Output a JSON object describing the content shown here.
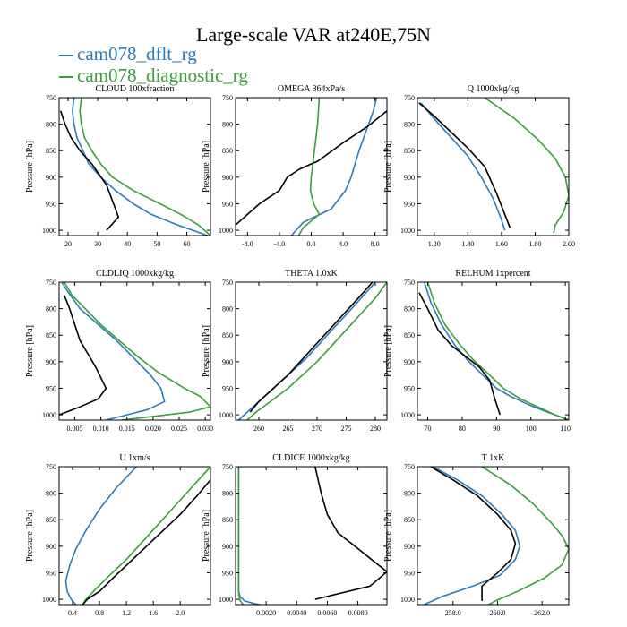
{
  "title": "Large-scale VAR at240E,75N",
  "legend": [
    {
      "name": "cam078_dflt_rg",
      "color": "#2b7bb9"
    },
    {
      "name": "cam078_diagnostic_rg",
      "color": "#3a9e3a"
    }
  ],
  "colors": {
    "reference": "#000000"
  },
  "chart_data": [
    {
      "type": "line",
      "title": "CLOUD  100xfraction",
      "ylabel": "Pressure [hPa]",
      "xlim": [
        17,
        68
      ],
      "ylim": [
        750,
        1010
      ],
      "y_reversed": true,
      "xticks": [
        20,
        30,
        40,
        50,
        60
      ],
      "xtick_labels": [
        "20",
        "30",
        "40",
        "50",
        "60"
      ],
      "yticks": [
        750,
        800,
        850,
        900,
        950,
        1000
      ],
      "ytick_labels": [
        "750",
        "800",
        "850",
        "900",
        "950",
        "1000"
      ],
      "series": [
        {
          "name": "cam078_dflt_rg",
          "x": [
            22,
            21.5,
            22,
            23,
            25,
            27,
            31,
            36,
            42,
            48,
            57,
            67
          ],
          "y": [
            750,
            775,
            800,
            825,
            850,
            875,
            900,
            925,
            950,
            970,
            990,
            1010
          ]
        },
        {
          "name": "cam078_diagnostic_rg",
          "x": [
            24.5,
            24,
            24.5,
            25.5,
            28,
            31,
            35,
            42,
            51,
            58,
            64,
            68
          ],
          "y": [
            750,
            775,
            800,
            825,
            850,
            875,
            900,
            925,
            950,
            970,
            990,
            1010
          ]
        },
        {
          "name": "",
          "x": [
            17.5,
            19,
            21,
            24,
            28,
            33,
            37,
            33
          ],
          "y": [
            775,
            800,
            825,
            850,
            875,
            915,
            975,
            1000
          ]
        }
      ]
    },
    {
      "type": "line",
      "title": "OMEGA  864xPa/s",
      "ylabel": "Pressure [hPa]",
      "xlim": [
        -9.5,
        9.5
      ],
      "ylim": [
        750,
        1010
      ],
      "y_reversed": true,
      "xticks": [
        -8,
        -4,
        0,
        4,
        8
      ],
      "xtick_labels": [
        "-8.0",
        "-4.0",
        "0.0",
        "4.0",
        "8.0"
      ],
      "yticks": [
        750,
        800,
        850,
        900,
        950,
        1000
      ],
      "ytick_labels": [
        "750",
        "800",
        "850",
        "900",
        "950",
        "1000"
      ],
      "series": [
        {
          "name": "cam078_dflt_rg",
          "x": [
            8.2,
            7.8,
            7.2,
            6.6,
            6.0,
            5.5,
            5.0,
            4.3,
            2.5,
            -1.0,
            -2.5
          ],
          "y": [
            750,
            775,
            800,
            825,
            850,
            875,
            900,
            925,
            960,
            985,
            1010
          ]
        },
        {
          "name": "cam078_diagnostic_rg",
          "x": [
            1.0,
            0.9,
            0.8,
            0.6,
            0.4,
            0.2,
            0.0,
            -0.1,
            0.3,
            1.0,
            -1.0,
            -1.6
          ],
          "y": [
            750,
            775,
            800,
            825,
            850,
            875,
            900,
            925,
            950,
            970,
            995,
            1010
          ]
        },
        {
          "name": "",
          "x": [
            9.5,
            7.0,
            4.0,
            0.8,
            0.0,
            -1.5,
            -3.0,
            -4.0,
            -6.5,
            -9.5
          ],
          "y": [
            775,
            805,
            835,
            870,
            875,
            885,
            900,
            925,
            950,
            990
          ]
        }
      ]
    },
    {
      "type": "line",
      "title": "Q  1000xkg/kg",
      "ylabel": "Pressure [hPa]",
      "xlim": [
        1.1,
        2.0
      ],
      "ylim": [
        750,
        1010
      ],
      "y_reversed": true,
      "xticks": [
        1.2,
        1.4,
        1.6,
        1.8,
        2.0
      ],
      "xtick_labels": [
        "1.20",
        "1.40",
        "1.60",
        "1.80",
        "2.00"
      ],
      "yticks": [
        750,
        800,
        850,
        900,
        950,
        1000
      ],
      "ytick_labels": [
        "750",
        "800",
        "850",
        "900",
        "950",
        "1000"
      ],
      "series": [
        {
          "name": "cam078_dflt_rg",
          "x": [
            1.12,
            1.2,
            1.3,
            1.4,
            1.48,
            1.55,
            1.6,
            1.62
          ],
          "y": [
            760,
            790,
            825,
            860,
            900,
            940,
            980,
            1000
          ]
        },
        {
          "name": "cam078_diagnostic_rg",
          "x": [
            1.5,
            1.68,
            1.82,
            1.92,
            1.98,
            2.0,
            1.97,
            1.92,
            1.91
          ],
          "y": [
            750,
            790,
            830,
            865,
            900,
            935,
            965,
            990,
            1005
          ]
        },
        {
          "name": "",
          "x": [
            1.11,
            1.2,
            1.3,
            1.4,
            1.5,
            1.57,
            1.62,
            1.65
          ],
          "y": [
            760,
            785,
            815,
            845,
            880,
            930,
            970,
            995
          ]
        }
      ]
    },
    {
      "type": "line",
      "title": "CLDLIQ  1000xkg/kg",
      "ylabel": "Pressure [hPa]",
      "xlim": [
        0.002,
        0.031
      ],
      "ylim": [
        750,
        1010
      ],
      "y_reversed": true,
      "xticks": [
        0.005,
        0.01,
        0.015,
        0.02,
        0.025,
        0.03
      ],
      "xtick_labels": [
        "0.005",
        "0.010",
        "0.015",
        "0.020",
        "0.025",
        "0.030"
      ],
      "yticks": [
        750,
        800,
        850,
        900,
        950,
        1000
      ],
      "ytick_labels": [
        "750",
        "800",
        "850",
        "900",
        "950",
        "1000"
      ],
      "series": [
        {
          "name": "cam078_dflt_rg",
          "x": [
            0.0025,
            0.0038,
            0.006,
            0.0095,
            0.013,
            0.016,
            0.0195,
            0.0215,
            0.0222,
            0.019,
            0.015,
            0.011
          ],
          "y": [
            750,
            770,
            800,
            830,
            860,
            890,
            925,
            950,
            975,
            990,
            1000,
            1010
          ]
        },
        {
          "name": "cam078_diagnostic_rg",
          "x": [
            0.003,
            0.0045,
            0.007,
            0.01,
            0.0135,
            0.017,
            0.021,
            0.026,
            0.029,
            0.031,
            0.027,
            0.02,
            0.014
          ],
          "y": [
            750,
            775,
            800,
            830,
            860,
            890,
            920,
            950,
            965,
            985,
            995,
            1003,
            1010
          ]
        },
        {
          "name": "",
          "x": [
            0.003,
            0.004,
            0.005,
            0.006,
            0.0075,
            0.009,
            0.011,
            0.0095,
            0.006,
            0.002
          ],
          "y": [
            775,
            800,
            830,
            860,
            885,
            910,
            950,
            970,
            985,
            1000
          ]
        }
      ]
    },
    {
      "type": "line",
      "title": "THETA  1.0xK",
      "ylabel": "Pressure [hPa]",
      "xlim": [
        256,
        282
      ],
      "ylim": [
        750,
        1010
      ],
      "y_reversed": true,
      "xticks": [
        260,
        265,
        270,
        275,
        280
      ],
      "xtick_labels": [
        "260",
        "265",
        "270",
        "275",
        "280"
      ],
      "yticks": [
        750,
        800,
        850,
        900,
        950,
        1000
      ],
      "ytick_labels": [
        "750",
        "800",
        "850",
        "900",
        "950",
        "1000"
      ],
      "series": [
        {
          "name": "cam078_dflt_rg",
          "x": [
            280,
            278,
            275.5,
            273,
            270.5,
            268,
            265.5,
            263,
            260.5,
            258,
            256.5
          ],
          "y": [
            750,
            775,
            805,
            835,
            865,
            895,
            920,
            945,
            970,
            995,
            1010
          ]
        },
        {
          "name": "cam078_diagnostic_rg",
          "x": [
            282,
            280,
            277.5,
            275,
            272.5,
            270,
            267.5,
            265,
            262,
            259.5,
            258
          ],
          "y": [
            750,
            780,
            810,
            840,
            870,
            900,
            925,
            950,
            975,
            995,
            1010
          ]
        },
        {
          "name": "",
          "x": [
            279.5,
            277.5,
            275,
            272.5,
            270,
            267.5,
            265,
            262.5,
            260,
            258.5
          ],
          "y": [
            750,
            775,
            805,
            835,
            865,
            895,
            925,
            950,
            975,
            995
          ]
        }
      ]
    },
    {
      "type": "line",
      "title": "RELHUM  1xpercent",
      "ylabel": "Pressure [hPa]",
      "xlim": [
        67,
        111
      ],
      "ylim": [
        750,
        1010
      ],
      "y_reversed": true,
      "xticks": [
        70,
        80,
        90,
        100,
        110
      ],
      "xtick_labels": [
        "70",
        "80",
        "90",
        "100",
        "110"
      ],
      "yticks": [
        750,
        800,
        850,
        900,
        950,
        1000
      ],
      "ytick_labels": [
        "750",
        "800",
        "850",
        "900",
        "950",
        "1000"
      ],
      "series": [
        {
          "name": "cam078_dflt_rg",
          "x": [
            69,
            71,
            74,
            78,
            82,
            86,
            90,
            94,
            99,
            104,
            109,
            111
          ],
          "y": [
            750,
            790,
            830,
            870,
            900,
            925,
            950,
            965,
            980,
            993,
            1005,
            1010
          ]
        },
        {
          "name": "cam078_diagnostic_rg",
          "x": [
            70,
            72,
            75,
            79,
            83,
            88,
            92,
            97,
            102,
            107,
            111
          ],
          "y": [
            750,
            790,
            830,
            865,
            895,
            925,
            950,
            970,
            985,
            1000,
            1010
          ]
        },
        {
          "name": "",
          "x": [
            67.5,
            70,
            73,
            77,
            81,
            85,
            88,
            89.5,
            91
          ],
          "y": [
            770,
            800,
            840,
            870,
            890,
            910,
            935,
            970,
            1000
          ]
        }
      ]
    },
    {
      "type": "line",
      "title": "U  1xm/s",
      "ylabel": "Pressure [hPa]",
      "xlim": [
        0.2,
        2.45
      ],
      "ylim": [
        750,
        1010
      ],
      "y_reversed": true,
      "xticks": [
        0.4,
        0.8,
        1.2,
        1.6,
        2.0
      ],
      "xtick_labels": [
        "0.4",
        "0.8",
        "1.2",
        "1.6",
        "2.0"
      ],
      "yticks": [
        750,
        800,
        850,
        900,
        950,
        1000
      ],
      "ytick_labels": [
        "750",
        "800",
        "850",
        "900",
        "950",
        "1000"
      ],
      "series": [
        {
          "name": "cam078_dflt_rg",
          "x": [
            1.35,
            1.05,
            0.8,
            0.6,
            0.45,
            0.36,
            0.3,
            0.32,
            0.38,
            0.45
          ],
          "y": [
            750,
            790,
            830,
            870,
            905,
            935,
            965,
            985,
            1000,
            1010
          ]
        },
        {
          "name": "cam078_diagnostic_rg",
          "x": [
            2.45,
            2.2,
            1.95,
            1.7,
            1.45,
            1.2,
            0.95,
            0.75,
            0.6,
            0.55
          ],
          "y": [
            750,
            785,
            820,
            855,
            890,
            925,
            955,
            980,
            1000,
            1010
          ]
        },
        {
          "name": "",
          "x": [
            2.45,
            2.25,
            2.0,
            1.75,
            1.5,
            1.25,
            1.0,
            0.8,
            0.62,
            0.55
          ],
          "y": [
            775,
            805,
            840,
            870,
            900,
            930,
            960,
            985,
            1000,
            1010
          ]
        }
      ]
    },
    {
      "type": "line",
      "title": "CLDICE  1000xkg/kg",
      "ylabel": "Pressure [hPa]",
      "xlim": [
        0.0,
        0.0099
      ],
      "ylim": [
        750,
        1010
      ],
      "y_reversed": true,
      "xticks": [
        0.002,
        0.004,
        0.006,
        0.008
      ],
      "xtick_labels": [
        "0.0020",
        "0.0040",
        "0.0060",
        "0.0080"
      ],
      "yticks": [
        750,
        800,
        850,
        900,
        950,
        1000
      ],
      "ytick_labels": [
        "750",
        "800",
        "850",
        "900",
        "950",
        "1000"
      ],
      "series": [
        {
          "name": "cam078_dflt_rg",
          "x": [
            0.0002,
            0.0002,
            0.0002,
            0.0002,
            0.0003,
            0.0006,
            0.0012,
            0.0016
          ],
          "y": [
            750,
            850,
            950,
            985,
            995,
            1003,
            1008,
            1010
          ]
        },
        {
          "name": "cam078_diagnostic_rg",
          "x": [
            0.0002,
            0.0002,
            0.0002,
            0.0002,
            0.0003,
            0.0005
          ],
          "y": [
            750,
            850,
            950,
            990,
            1002,
            1010
          ]
        },
        {
          "name": "",
          "x": [
            0.0052,
            0.0056,
            0.006,
            0.0067,
            0.0078,
            0.0089,
            0.0099,
            0.0088,
            0.0052
          ],
          "y": [
            750,
            800,
            840,
            875,
            900,
            925,
            948,
            975,
            1000
          ]
        }
      ]
    },
    {
      "type": "line",
      "title": "T  1xK",
      "ylabel": "Pressure [hPa]",
      "xlim": [
        256.4,
        263.2
      ],
      "ylim": [
        750,
        1010
      ],
      "y_reversed": true,
      "xticks": [
        258,
        260,
        262
      ],
      "xtick_labels": [
        "258.0",
        "260.0",
        "262.0"
      ],
      "yticks": [
        750,
        800,
        850,
        900,
        950,
        1000
      ],
      "ytick_labels": [
        "750",
        "800",
        "850",
        "900",
        "950",
        "1000"
      ],
      "series": [
        {
          "name": "cam078_dflt_rg",
          "x": [
            257.1,
            258.2,
            259.3,
            260.2,
            260.8,
            261.0,
            260.8,
            260.1,
            258.9,
            257.5,
            256.7
          ],
          "y": [
            750,
            775,
            805,
            840,
            870,
            900,
            925,
            955,
            975,
            995,
            1010
          ]
        },
        {
          "name": "cam078_diagnostic_rg",
          "x": [
            259.3,
            260.6,
            261.6,
            262.4,
            262.9,
            263.2,
            262.9,
            262.1,
            260.9,
            259.9,
            259.6
          ],
          "y": [
            750,
            785,
            820,
            855,
            880,
            905,
            935,
            960,
            985,
            1003,
            1010
          ]
        },
        {
          "name": "",
          "x": [
            257.0,
            258.0,
            259.1,
            260.0,
            260.6,
            260.8,
            260.6,
            260.0,
            259.3,
            259.3
          ],
          "y": [
            750,
            775,
            805,
            840,
            870,
            895,
            925,
            950,
            975,
            1003
          ]
        }
      ]
    }
  ]
}
